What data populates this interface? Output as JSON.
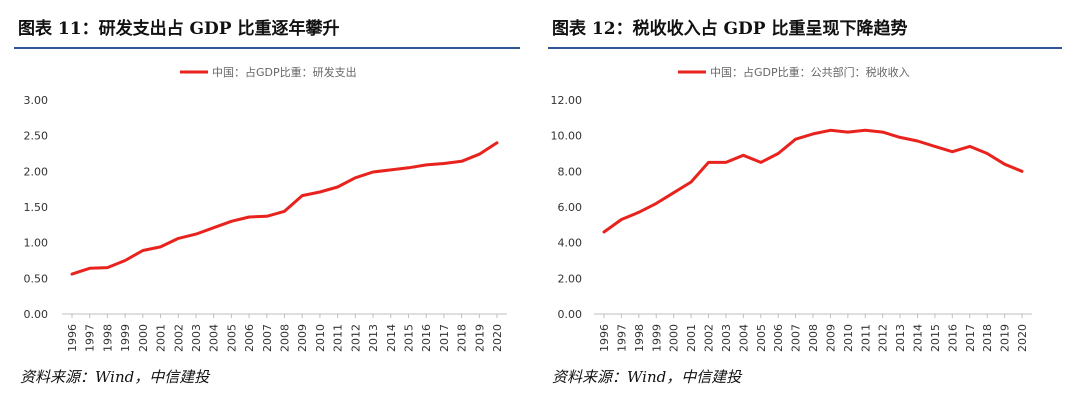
{
  "left": {
    "figure_title": "图表 11：研发支出占 GDP 比重逐年攀升",
    "source": "资料来源：Wind，中信建投"
  },
  "right": {
    "figure_title": "图表 12：税收收入占 GDP 比重呈现下降趋势",
    "source": "资料来源：Wind，中信建投"
  },
  "chart_data": [
    {
      "type": "line",
      "title": "",
      "xlabel": "",
      "ylabel": "",
      "categories": [
        "1996",
        "1997",
        "1998",
        "1999",
        "2000",
        "2001",
        "2002",
        "2003",
        "2004",
        "2005",
        "2006",
        "2007",
        "2008",
        "2009",
        "2010",
        "2011",
        "2012",
        "2013",
        "2014",
        "2015",
        "2016",
        "2017",
        "2018",
        "2019",
        "2020"
      ],
      "ylim": [
        0,
        3
      ],
      "yticks": [
        "0.00",
        "0.50",
        "1.00",
        "1.50",
        "2.00",
        "2.50",
        "3.00"
      ],
      "legend_position": "top-center",
      "grid": false,
      "series": [
        {
          "name": "中国：占GDP比重：研发支出",
          "color": "#e8231e",
          "values": [
            0.56,
            0.64,
            0.65,
            0.75,
            0.89,
            0.94,
            1.06,
            1.12,
            1.21,
            1.3,
            1.36,
            1.37,
            1.44,
            1.66,
            1.71,
            1.78,
            1.91,
            1.99,
            2.02,
            2.05,
            2.09,
            2.11,
            2.14,
            2.24,
            2.4
          ]
        }
      ]
    },
    {
      "type": "line",
      "title": "",
      "xlabel": "",
      "ylabel": "",
      "categories": [
        "1996",
        "1997",
        "1998",
        "1999",
        "2000",
        "2001",
        "2002",
        "2003",
        "2004",
        "2005",
        "2006",
        "2007",
        "2008",
        "2009",
        "2010",
        "2011",
        "2012",
        "2013",
        "2014",
        "2015",
        "2016",
        "2017",
        "2018",
        "2019",
        "2020"
      ],
      "ylim": [
        0,
        12
      ],
      "yticks": [
        "0.00",
        "2.00",
        "4.00",
        "6.00",
        "8.00",
        "10.00",
        "12.00"
      ],
      "legend_position": "top-center",
      "grid": false,
      "series": [
        {
          "name": "中国：占GDP比重：公共部门：税收收入",
          "color": "#e8231e",
          "values": [
            4.6,
            5.3,
            5.7,
            6.2,
            6.8,
            7.4,
            8.5,
            8.5,
            8.9,
            8.5,
            9.0,
            9.8,
            10.1,
            10.3,
            10.2,
            10.3,
            10.2,
            9.9,
            9.7,
            9.4,
            9.1,
            9.4,
            9.0,
            8.4,
            8.0
          ]
        }
      ]
    }
  ]
}
